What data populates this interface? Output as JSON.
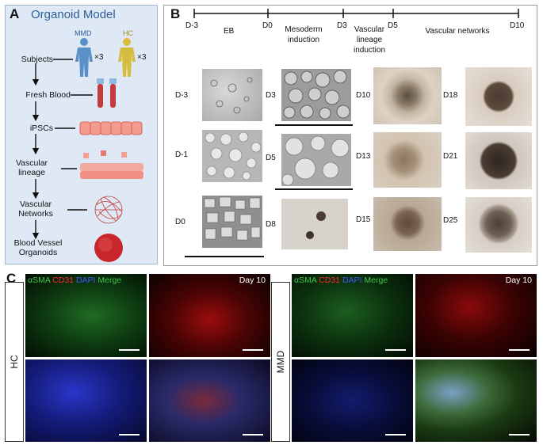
{
  "panelA": {
    "letter": "A",
    "title": "Organoid Model",
    "groups": [
      {
        "label": "MMD",
        "color": "#5b8fc7"
      },
      {
        "label": "HC",
        "color": "#c9b23c"
      }
    ],
    "multiplier": "×3",
    "steps": [
      "Subjects",
      "Fresh Blood",
      "iPSCs",
      "Vascular lineage",
      "Vascular Networks",
      "Blood Vessel Organoids"
    ]
  },
  "panelB": {
    "letter": "B",
    "timeline": {
      "ticks": [
        "D-3",
        "D0",
        "D3",
        "D5",
        "D10"
      ],
      "stages": [
        "EB",
        "Mesoderm induction",
        "Vascular lineage induction",
        "Vascular networks"
      ]
    },
    "images": [
      "D-3",
      "D-1",
      "D0",
      "D3",
      "D5",
      "D8",
      "D10",
      "D13",
      "D15",
      "D18",
      "D21",
      "D25"
    ]
  },
  "panelC": {
    "letter": "C",
    "hc_label": "HC",
    "mmd_label": "MMD",
    "stain_legend": {
      "a": "αSMA",
      "b": "CD31",
      "c": "DAPI",
      "d": "Merge"
    },
    "day_label": "Day 10",
    "colors": {
      "asma": "#3fc64a",
      "cd31": "#ff2b2b",
      "dapi": "#3b5bff",
      "merge": "#3fc64a"
    }
  }
}
